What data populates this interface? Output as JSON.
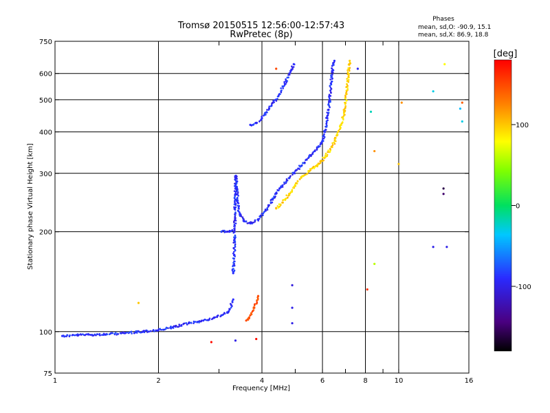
{
  "chart_data": {
    "type": "scatter",
    "title": "Tromsø 20150515 12:56:00-12:57:43",
    "subtitle": "RwPretec (8p)",
    "xlabel": "Frequency [MHz]",
    "ylabel": "Stationary phase Virtual Height [km]",
    "xscale": "log",
    "yscale": "log",
    "xlim": [
      1,
      16
    ],
    "ylim": [
      75,
      750
    ],
    "x_ticks": [
      1,
      2,
      4,
      6,
      8,
      10,
      16
    ],
    "x_minor_ticks": [
      3,
      5,
      7,
      9
    ],
    "y_ticks": [
      75,
      100,
      200,
      300,
      400,
      500,
      600,
      750
    ],
    "y_grid": [
      100,
      200,
      300,
      400,
      500,
      600
    ],
    "x_grid": [
      2,
      4,
      6,
      8,
      10
    ],
    "grid": true,
    "phases_box": {
      "title": "Phases",
      "line_o": "mean, sd,O: -90.9, 15.1",
      "line_x": "mean, sd,X:  86.9, 18.8"
    },
    "colorbar": {
      "label": "[deg]",
      "range": [
        -180,
        180
      ],
      "ticks": [
        100,
        0,
        -100
      ],
      "colormap": "rainbow"
    },
    "series": [
      {
        "name": "O-mode trace (blue)",
        "phase_deg": -90,
        "segments": [
          {
            "x": [
              1.05,
              1.25,
              1.4,
              1.6,
              1.8,
              2.0,
              2.2,
              2.45,
              2.7,
              2.9,
              3.05,
              3.2,
              3.3
            ],
            "y": [
              97,
              98,
              98,
              99,
              100,
              101,
              103,
              106,
              108,
              110,
              112,
              115,
              125
            ]
          },
          {
            "x": [
              3.3,
              3.32,
              3.33,
              3.34,
              3.35,
              3.36,
              3.38,
              3.4,
              3.45,
              3.55,
              3.7,
              3.9,
              4.1,
              4.3,
              4.5,
              4.8,
              5.1,
              5.4,
              5.7,
              6.0,
              6.1,
              6.2,
              6.3,
              6.35,
              6.4,
              6.45,
              6.5
            ],
            "y": [
              150,
              170,
              190,
              220,
              260,
              295,
              270,
              245,
              225,
              215,
              212,
              218,
              232,
              250,
              270,
              290,
              310,
              330,
              350,
              375,
              400,
              440,
              500,
              560,
              610,
              640,
              655
            ]
          },
          {
            "x": [
              3.05,
              3.15,
              3.22,
              3.28
            ],
            "y": [
              200,
              200,
              200,
              202
            ]
          },
          {
            "x": [
              3.7,
              3.85,
              4.0,
              4.2,
              4.5,
              4.7,
              4.85,
              4.95
            ],
            "y": [
              420,
              425,
              440,
              470,
              520,
              570,
              610,
              640
            ]
          }
        ]
      },
      {
        "name": "X-mode trace (yellow-green)",
        "phase_deg": 95,
        "segments": [
          {
            "x": [
              4.4,
              4.6,
              4.8,
              5.0,
              5.2,
              5.5,
              5.8,
              6.1,
              6.4,
              6.6,
              6.8,
              6.95,
              7.05,
              7.1,
              7.15,
              7.2
            ],
            "y": [
              235,
              245,
              260,
              275,
              292,
              305,
              318,
              335,
              360,
              390,
              420,
              460,
              520,
              570,
              620,
              655
            ]
          }
        ]
      },
      {
        "name": "Orange echoes",
        "phase_deg": 150,
        "segments": [
          {
            "x": [
              3.6,
              3.7,
              3.8,
              3.9
            ],
            "y": [
              108,
              112,
              118,
              128
            ]
          }
        ]
      },
      {
        "name": "Scattered points",
        "points": [
          {
            "x": 2.85,
            "y": 93,
            "phase_deg": 175
          },
          {
            "x": 3.35,
            "y": 94,
            "phase_deg": -100
          },
          {
            "x": 3.85,
            "y": 95,
            "phase_deg": 175
          },
          {
            "x": 4.9,
            "y": 138,
            "phase_deg": -105
          },
          {
            "x": 4.9,
            "y": 118,
            "phase_deg": -100
          },
          {
            "x": 4.9,
            "y": 106,
            "phase_deg": -100
          },
          {
            "x": 1.75,
            "y": 122,
            "phase_deg": 100
          },
          {
            "x": 8.1,
            "y": 134,
            "phase_deg": 160
          },
          {
            "x": 8.5,
            "y": 160,
            "phase_deg": 60
          },
          {
            "x": 8.5,
            "y": 350,
            "phase_deg": 120
          },
          {
            "x": 8.3,
            "y": 460,
            "phase_deg": -20
          },
          {
            "x": 7.6,
            "y": 620,
            "phase_deg": -95
          },
          {
            "x": 10.0,
            "y": 320,
            "phase_deg": 100
          },
          {
            "x": 10.2,
            "y": 490,
            "phase_deg": 120
          },
          {
            "x": 12.6,
            "y": 180,
            "phase_deg": -100
          },
          {
            "x": 12.6,
            "y": 530,
            "phase_deg": -30
          },
          {
            "x": 13.8,
            "y": 180,
            "phase_deg": -100
          },
          {
            "x": 13.5,
            "y": 270,
            "phase_deg": -160
          },
          {
            "x": 13.5,
            "y": 260,
            "phase_deg": -150
          },
          {
            "x": 13.6,
            "y": 640,
            "phase_deg": 80
          },
          {
            "x": 15.1,
            "y": 470,
            "phase_deg": -40
          },
          {
            "x": 15.3,
            "y": 490,
            "phase_deg": 140
          },
          {
            "x": 15.3,
            "y": 430,
            "phase_deg": -30
          },
          {
            "x": 4.4,
            "y": 620,
            "phase_deg": 150
          }
        ]
      }
    ]
  }
}
